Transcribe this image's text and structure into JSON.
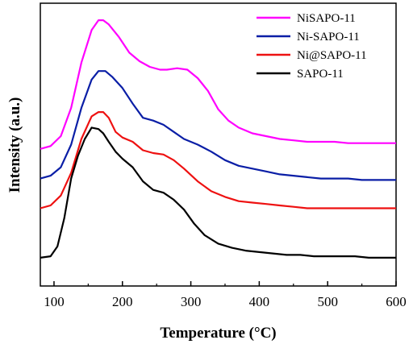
{
  "chart_data": {
    "type": "line",
    "xlabel": "Temperature (°C)",
    "ylabel": "Intensity (a.u.)",
    "xlim": [
      80,
      600
    ],
    "xticks": [
      100,
      200,
      300,
      400,
      500,
      600
    ],
    "xtick_labels": [
      "100",
      "200",
      "300",
      "400",
      "500",
      "600"
    ],
    "yticks_shown": false,
    "ylim": [
      0,
      100
    ],
    "grid": false,
    "legend_position": "top-right",
    "series": [
      {
        "name": "NiSAPO-11",
        "color": "#ff00ff",
        "x": [
          80,
          95,
          110,
          125,
          140,
          155,
          165,
          172,
          180,
          195,
          210,
          225,
          240,
          255,
          265,
          280,
          295,
          310,
          325,
          340,
          355,
          370,
          390,
          410,
          430,
          450,
          470,
          490,
          510,
          530,
          550,
          570,
          600
        ],
        "y": [
          48.5,
          49.5,
          53,
          63,
          79,
          90.5,
          94,
          94,
          92.5,
          88,
          82.5,
          79.5,
          77.5,
          76.5,
          76.5,
          77,
          76.5,
          73.5,
          69,
          62.5,
          58.5,
          56,
          54,
          53,
          52,
          51.5,
          51,
          51,
          51,
          50.5,
          50.5,
          50.5,
          50.5
        ]
      },
      {
        "name": "Ni-SAPO-11",
        "color": "#0a1ea6",
        "x": [
          80,
          95,
          110,
          125,
          140,
          155,
          165,
          175,
          185,
          200,
          215,
          230,
          245,
          260,
          275,
          290,
          310,
          330,
          350,
          370,
          390,
          410,
          430,
          450,
          470,
          490,
          510,
          530,
          550,
          570,
          600
        ],
        "y": [
          38,
          39,
          42,
          50,
          63,
          73,
          76,
          76,
          74,
          70,
          64.5,
          59.5,
          58.5,
          57,
          54.5,
          52,
          50,
          47.5,
          44.5,
          42.5,
          41.5,
          40.5,
          39.5,
          39,
          38.5,
          38,
          38,
          38,
          37.5,
          37.5,
          37.5
        ]
      },
      {
        "name": "Ni@SAPO-11",
        "color": "#ee1111",
        "x": [
          80,
          95,
          110,
          125,
          140,
          155,
          165,
          172,
          180,
          190,
          200,
          215,
          230,
          245,
          260,
          275,
          290,
          310,
          330,
          350,
          370,
          390,
          410,
          430,
          450,
          470,
          490,
          510,
          530,
          550,
          570,
          600
        ],
        "y": [
          27.5,
          28.5,
          32,
          40,
          52,
          60,
          61.5,
          61.5,
          59.5,
          54.5,
          52.5,
          51,
          48,
          47,
          46.5,
          44.5,
          41.5,
          37,
          33.5,
          31.5,
          30,
          29.5,
          29,
          28.5,
          28,
          27.5,
          27.5,
          27.5,
          27.5,
          27.5,
          27.5,
          27.5
        ]
      },
      {
        "name": "SAPO-11",
        "color": "#000000",
        "x": [
          80,
          95,
          105,
          115,
          125,
          135,
          145,
          155,
          165,
          172,
          180,
          190,
          200,
          215,
          230,
          245,
          260,
          275,
          290,
          305,
          320,
          340,
          360,
          380,
          400,
          420,
          440,
          460,
          480,
          500,
          520,
          540,
          560,
          580,
          600
        ],
        "y": [
          10,
          10.5,
          14,
          24,
          38,
          46,
          52,
          56,
          55.5,
          54,
          51,
          47.5,
          45,
          42,
          37,
          34,
          33,
          30.5,
          27,
          22,
          18,
          15,
          13.5,
          12.5,
          12,
          11.5,
          11,
          11,
          10.5,
          10.5,
          10.5,
          10.5,
          10,
          10,
          10
        ]
      }
    ]
  }
}
